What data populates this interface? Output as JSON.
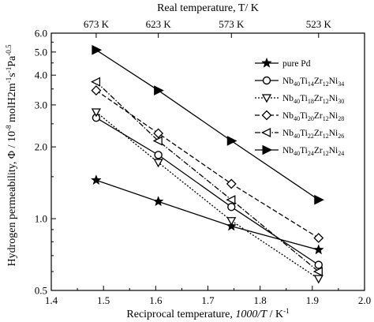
{
  "chart_data": {
    "type": "line",
    "top_axis": {
      "title": "Real temperature, T/ K",
      "ticks": [
        {
          "label": "673 K",
          "x": 1.486
        },
        {
          "label": "623 K",
          "x": 1.605
        },
        {
          "label": "573 K",
          "x": 1.745
        },
        {
          "label": "523 K",
          "x": 1.912
        }
      ]
    },
    "xlabel": "Reciprocal temperature, 1000/T / K⁻¹",
    "xlabel_parts": {
      "pre": "Reciprocal temperature, ",
      "italic": "1000/T",
      "post": " / K",
      "sup": "-1"
    },
    "ylabel_parts": {
      "pre": "Hydrogen permeability, Φ / 10",
      "sup1": "-8",
      "mid": " molH2m",
      "sup2": "-1",
      "s": "s",
      "sup3": "-1",
      "pa": "Pa",
      "sup4": "-0.5"
    },
    "xlim": [
      1.4,
      2.0
    ],
    "ylim": [
      0.5,
      6.0
    ],
    "y_scale": "log",
    "x_ticks": [
      "1.4",
      "1.5",
      "1.6",
      "1.7",
      "1.8",
      "1.9",
      "2.0"
    ],
    "x_tick_values": [
      1.4,
      1.5,
      1.6,
      1.7,
      1.8,
      1.9,
      2.0
    ],
    "y_ticks": [
      "0.5",
      "1.0",
      "2.0",
      "3.0",
      "4.0",
      "5.0",
      "6.0"
    ],
    "y_tick_values": [
      0.5,
      1.0,
      2.0,
      3.0,
      4.0,
      5.0,
      6.0
    ],
    "legend_position": "top-right",
    "series": [
      {
        "name": "pure Pd",
        "label_parts": [
          [
            "pure Pd",
            ""
          ]
        ],
        "marker": "star",
        "dash": "",
        "x": [
          1.486,
          1.605,
          1.745,
          1.912
        ],
        "values": [
          1.45,
          1.18,
          0.93,
          0.74
        ]
      },
      {
        "name": "Nb40Ti14Zr12Ni34",
        "label_parts": [
          [
            "Nb",
            "40"
          ],
          [
            "Ti",
            "14"
          ],
          [
            "Zr",
            "12"
          ],
          [
            "Ni",
            "34"
          ]
        ],
        "marker": "circle",
        "dash": "",
        "x": [
          1.486,
          1.605,
          1.745,
          1.912
        ],
        "values": [
          2.65,
          1.85,
          1.12,
          0.64
        ]
      },
      {
        "name": "Nb40Ti18Zr12Ni30",
        "label_parts": [
          [
            "Nb",
            "40"
          ],
          [
            "Ti",
            "18"
          ],
          [
            "Zr",
            "12"
          ],
          [
            "Ni",
            "30"
          ]
        ],
        "marker": "triangle-down",
        "dash": "2,2",
        "x": [
          1.486,
          1.605,
          1.745,
          1.912
        ],
        "values": [
          2.8,
          1.72,
          0.98,
          0.56
        ]
      },
      {
        "name": "Nb40Ti20Zr12Ni28",
        "label_parts": [
          [
            "Nb",
            "40"
          ],
          [
            "Ti",
            "20"
          ],
          [
            "Zr",
            "12"
          ],
          [
            "Ni",
            "28"
          ]
        ],
        "marker": "diamond",
        "dash": "6,3",
        "x": [
          1.486,
          1.605,
          1.745,
          1.912
        ],
        "values": [
          3.45,
          2.28,
          1.4,
          0.83
        ]
      },
      {
        "name": "Nb40Ti22Zr12Ni26",
        "label_parts": [
          [
            "Nb",
            "40"
          ],
          [
            "Ti",
            "22"
          ],
          [
            "Zr",
            "12"
          ],
          [
            "Ni",
            "26"
          ]
        ],
        "marker": "triangle-left",
        "dash": "7,2,1.5,2",
        "x": [
          1.486,
          1.605,
          1.745,
          1.912
        ],
        "values": [
          3.75,
          2.12,
          1.2,
          0.6
        ]
      },
      {
        "name": "Nb40Ti24Zr12Ni24",
        "label_parts": [
          [
            "Nb",
            "40"
          ],
          [
            "Ti",
            "24"
          ],
          [
            "Zr",
            "12"
          ],
          [
            "Ni",
            "24"
          ]
        ],
        "marker": "triangle-right",
        "dash": "",
        "x": [
          1.486,
          1.605,
          1.745,
          1.912
        ],
        "values": [
          5.1,
          3.45,
          2.12,
          1.2
        ]
      }
    ]
  }
}
